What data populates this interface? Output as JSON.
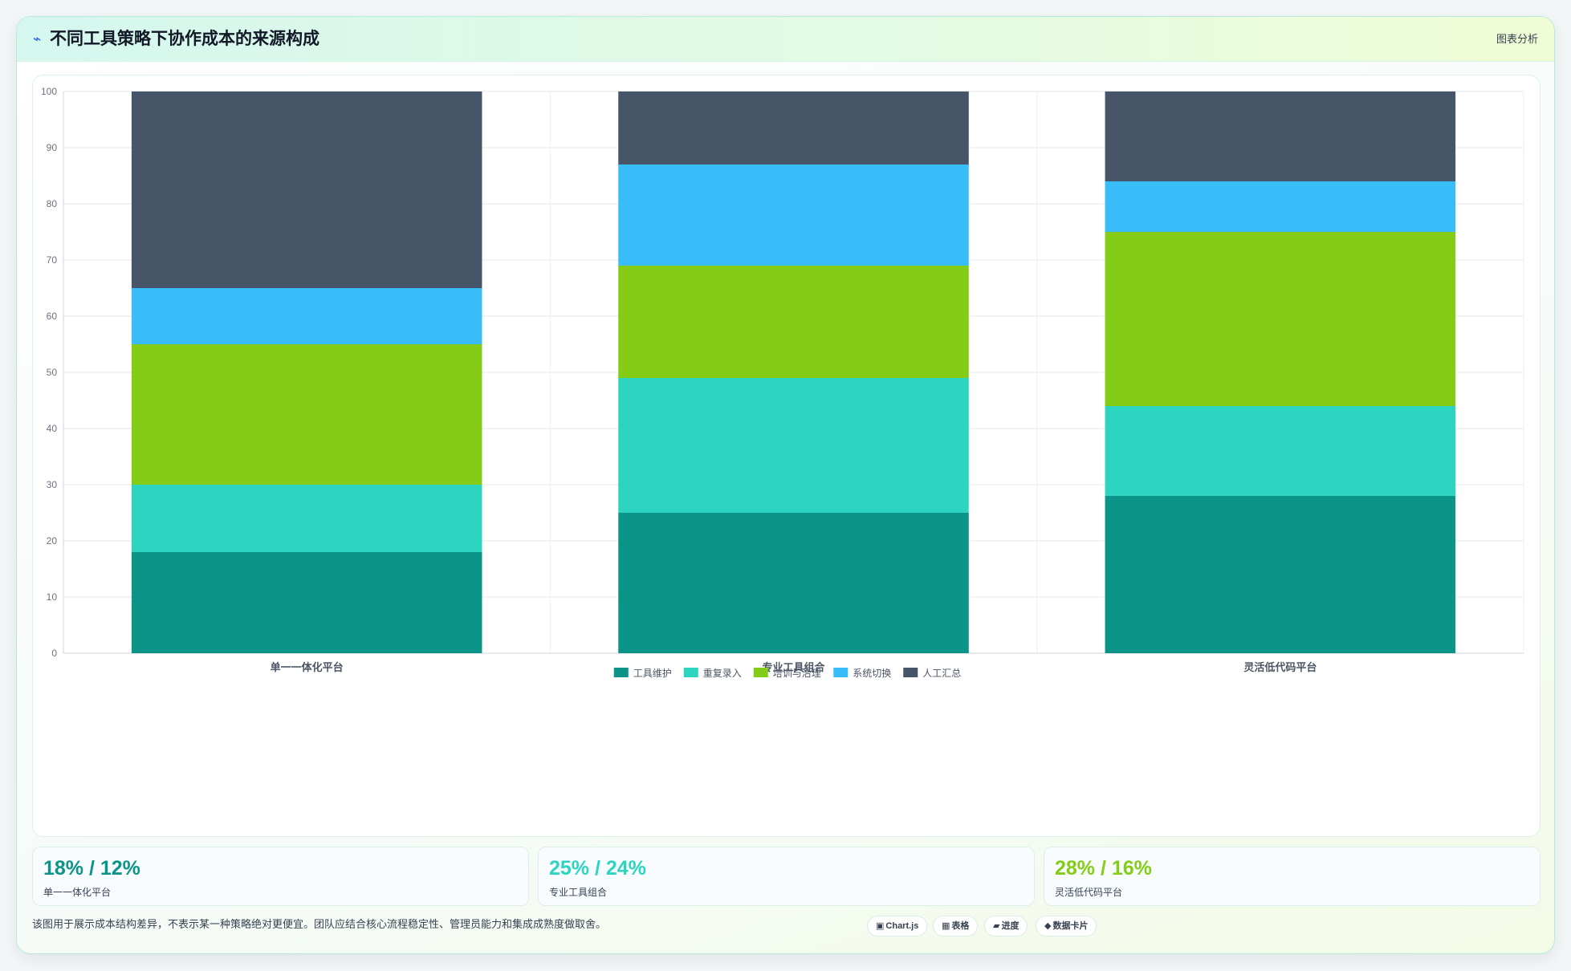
{
  "header": {
    "icon": "activity-icon",
    "title": "不同工具策略下协作成本的来源构成",
    "action": "图表分析"
  },
  "chart_data": {
    "type": "bar",
    "stacked": true,
    "title": "",
    "xlabel": "",
    "ylabel": "",
    "ylim": [
      0,
      100
    ],
    "yticks": [
      0,
      10,
      20,
      30,
      40,
      50,
      60,
      70,
      80,
      90,
      100
    ],
    "grid": true,
    "legend_position": "bottom",
    "categories": [
      "单一一体化平台",
      "专业工具组合",
      "灵活低代码平台"
    ],
    "series": [
      {
        "name": "工具维护",
        "color": "#0d9488",
        "values": [
          18,
          25,
          28
        ]
      },
      {
        "name": "重复录入",
        "color": "#2dd4bf",
        "values": [
          12,
          24,
          16
        ]
      },
      {
        "name": "培训与治理",
        "color": "#84cc16",
        "values": [
          25,
          20,
          31
        ]
      },
      {
        "name": "系统切换",
        "color": "#38bdf8",
        "values": [
          10,
          18,
          9
        ]
      },
      {
        "name": "人工汇总",
        "color": "#475569",
        "values": [
          35,
          13,
          16
        ]
      }
    ]
  },
  "stats": [
    {
      "value": "18% / 12%",
      "label": "单一一体化平台",
      "color": "#0d9488"
    },
    {
      "value": "25% / 24%",
      "label": "专业工具组合",
      "color": "#2dd4bf"
    },
    {
      "value": "28% / 16%",
      "label": "灵活低代码平台",
      "color": "#84cc16"
    }
  ],
  "footer": {
    "note": "该图用于展示成本结构差异，不表示某一种策略绝对更便宜。团队应结合核心流程稳定性、管理员能力和集成成熟度做取舍。",
    "tags": [
      {
        "icon": "▣",
        "label": "Chart.js"
      },
      {
        "icon": "▦",
        "label": "表格"
      },
      {
        "icon": "▰",
        "label": "进度"
      },
      {
        "icon": "◆",
        "label": "数据卡片"
      }
    ]
  }
}
